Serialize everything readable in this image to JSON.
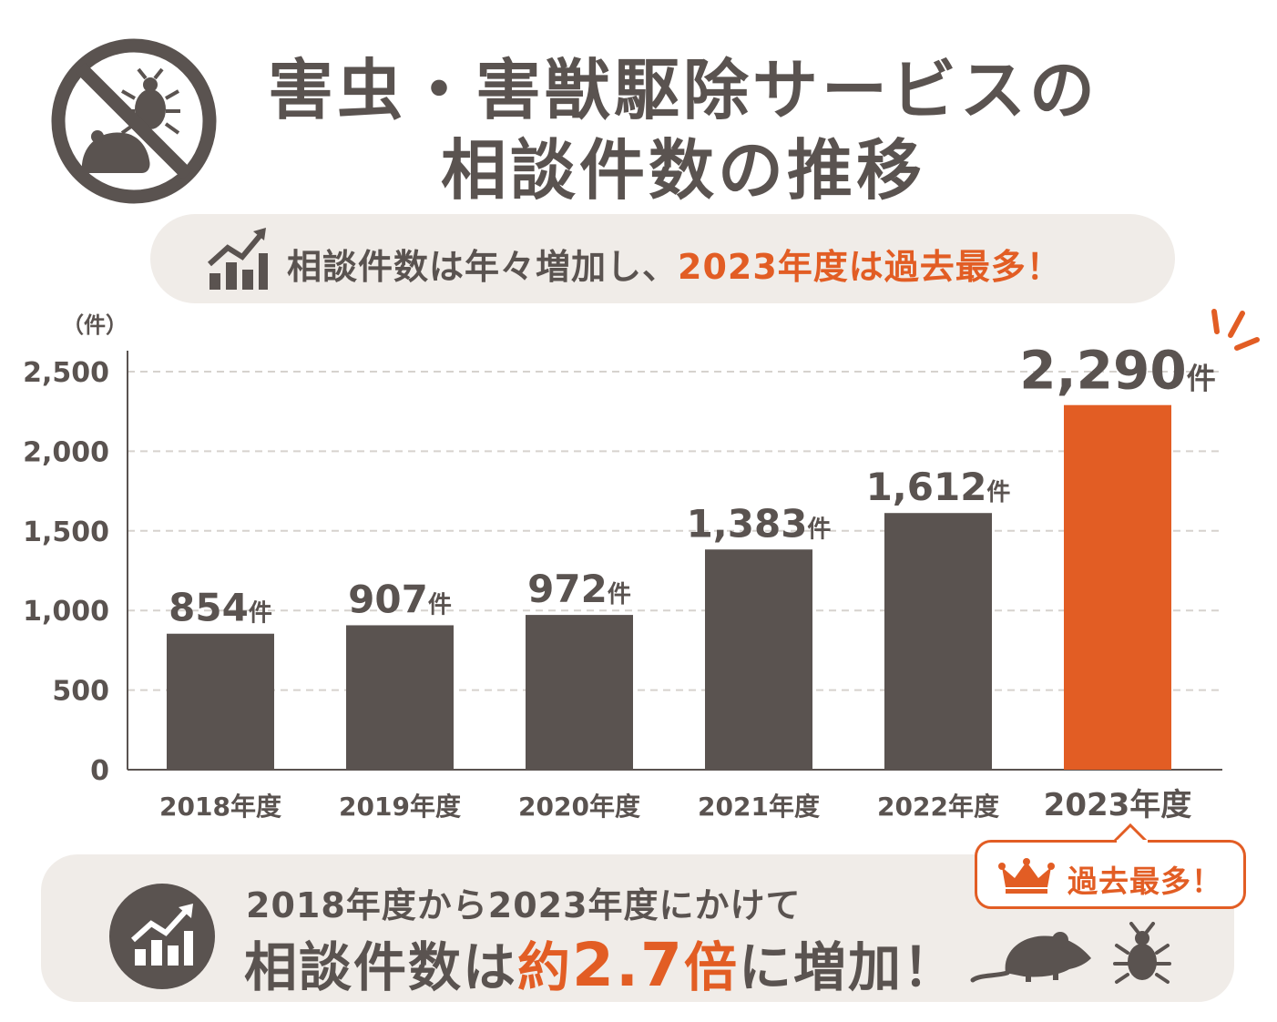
{
  "title": {
    "line1": "害虫・害獣駆除サービスの",
    "line2": "相談件数の推移"
  },
  "headline": {
    "prefix": "相談件数は年々増加し、",
    "highlight": "2023年度は過去最多！"
  },
  "summary": {
    "line1": "2018年度から2023年度にかけて",
    "line2_a": "相談件数は",
    "line2_b": "約",
    "line2_c": "2.7",
    "line2_d": "倍",
    "line2_e": "に増加！"
  },
  "badge": {
    "label": "過去最多！"
  },
  "colors": {
    "bar": "#5a5350",
    "accent": "#e25d24",
    "grid": "#d6d2ce",
    "pill": "#f0ece8"
  },
  "icons": [
    "no-pests-icon",
    "growth-chart-icon",
    "crown-icon",
    "mouse-icon",
    "bug-icon"
  ],
  "chart_data": {
    "type": "bar",
    "ylabel": "（件）",
    "categories": [
      "2018年度",
      "2019年度",
      "2020年度",
      "2021年度",
      "2022年度",
      "2023年度"
    ],
    "values": [
      854,
      907,
      972,
      1383,
      1612,
      2290
    ],
    "value_labels": [
      "854",
      "907",
      "972",
      "1,383",
      "1,612",
      "2,290"
    ],
    "value_unit": "件",
    "highlight_index": 5,
    "ylim": [
      0,
      2500
    ],
    "yticks": [
      0,
      500,
      1000,
      1500,
      2000,
      2500
    ],
    "ytick_labels": [
      "0",
      "500",
      "1,000",
      "1,500",
      "2,000",
      "2,500"
    ],
    "grid": true
  }
}
